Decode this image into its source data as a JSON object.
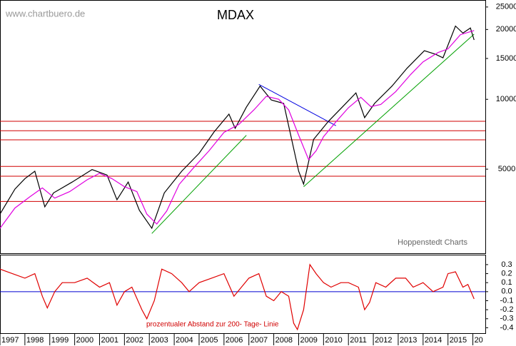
{
  "chart_data": [
    {
      "type": "line",
      "title": "MDAX",
      "watermark": "www.chartbuero.de",
      "credit": "Hoppenstedt Charts",
      "log_scale": true,
      "xlim": [
        1997,
        2016.5
      ],
      "ylim": [
        2170,
        26800
      ],
      "yticks": [
        5000,
        10000,
        15000,
        20000,
        25000
      ],
      "series": [
        {
          "name": "MDAX",
          "color": "#000000",
          "x": [
            1997.0,
            1997.6,
            1998.0,
            1998.4,
            1998.8,
            1999.15,
            1999.9,
            2000.7,
            2001.3,
            2001.7,
            2002.15,
            2002.6,
            2003.1,
            2003.6,
            2004.3,
            2005.0,
            2005.6,
            2006.2,
            2006.45,
            2006.9,
            2007.45,
            2007.9,
            2008.4,
            2008.75,
            2009.0,
            2009.2,
            2009.6,
            2010.2,
            2010.75,
            2011.3,
            2011.65,
            2012.05,
            2012.75,
            2013.35,
            2014.05,
            2014.5,
            2014.8,
            2015.3,
            2015.6,
            2015.9,
            2016.05
          ],
          "values": [
            3200,
            4100,
            4550,
            4900,
            3440,
            3950,
            4400,
            4980,
            4720,
            3690,
            4400,
            3320,
            2780,
            3950,
            4900,
            5850,
            7230,
            8630,
            7500,
            9250,
            11400,
            9940,
            9600,
            6500,
            4900,
            4310,
            6720,
            8050,
            9250,
            10660,
            8340,
            9600,
            11400,
            13600,
            16200,
            15640,
            15100,
            20700,
            19300,
            20300,
            18030
          ]
        },
        {
          "name": "200-Tage-Linie",
          "color": "#e000e0",
          "x": [
            1997.0,
            1997.6,
            1998.2,
            1998.7,
            1999.2,
            1999.8,
            2000.5,
            2001.0,
            2001.5,
            2002.0,
            2002.5,
            2002.9,
            2003.3,
            2003.7,
            2004.2,
            2004.8,
            2005.4,
            2006.0,
            2006.6,
            2007.2,
            2007.7,
            2008.2,
            2008.6,
            2009.0,
            2009.4,
            2009.7,
            2010.0,
            2010.5,
            2011.0,
            2011.5,
            2011.9,
            2012.3,
            2012.9,
            2013.5,
            2014.0,
            2014.6,
            2015.0,
            2015.5,
            2016.05
          ],
          "values": [
            2780,
            3400,
            3800,
            4150,
            3750,
            4000,
            4500,
            4800,
            4550,
            4200,
            4000,
            3200,
            2900,
            3300,
            4300,
            5100,
            6000,
            7200,
            7800,
            9000,
            10300,
            10000,
            9000,
            7000,
            5500,
            6000,
            6900,
            8000,
            9200,
            10200,
            9300,
            9500,
            10800,
            12800,
            14500,
            15900,
            16500,
            19000,
            19800
          ]
        }
      ],
      "hlines": [
        8040,
        7320,
        6690,
        5140,
        4660,
        3630
      ],
      "hline_color": "#d00000",
      "trendlines": [
        {
          "color": "#00a000",
          "x": [
            2003.1,
            2006.9
          ],
          "y": [
            2640,
            7000
          ]
        },
        {
          "color": "#00a000",
          "x": [
            2009.2,
            2016.05
          ],
          "y": [
            4200,
            19100
          ]
        },
        {
          "color": "#0000e0",
          "x": [
            2007.4,
            2010.5
          ],
          "y": [
            11600,
            7700
          ]
        }
      ]
    },
    {
      "type": "line",
      "label": "prozentualer Abstand zur 200- Tage- Linie",
      "xlim": [
        1997,
        2016.5
      ],
      "ylim": [
        -0.46,
        0.41
      ],
      "yticks": [
        0.3,
        0.2,
        0.1,
        {
          "value": 0,
          "label": "0.0"
        },
        -0.1,
        -0.2,
        -0.3,
        -0.4
      ],
      "xticks": [
        1997,
        1998,
        1999,
        2000,
        2001,
        2002,
        2003,
        2004,
        2005,
        2006,
        2007,
        2008,
        2009,
        2010,
        2011,
        2012,
        2013,
        2014,
        2015,
        {
          "value": 2016,
          "label": "20"
        }
      ],
      "zero_color": "#0000d0",
      "series": [
        {
          "name": "Abstand",
          "color": "#e00000",
          "x": [
            1997.0,
            1997.5,
            1998.0,
            1998.4,
            1998.7,
            1998.9,
            1999.2,
            1999.5,
            2000.0,
            2000.5,
            2001.0,
            2001.4,
            2001.7,
            2002.0,
            2002.3,
            2002.7,
            2002.9,
            2003.2,
            2003.5,
            2003.9,
            2004.3,
            2004.6,
            2005.0,
            2005.5,
            2006.0,
            2006.4,
            2006.7,
            2007.0,
            2007.4,
            2007.7,
            2008.0,
            2008.3,
            2008.6,
            2008.8,
            2008.95,
            2009.2,
            2009.45,
            2009.7,
            2010.0,
            2010.3,
            2010.7,
            2011.0,
            2011.4,
            2011.65,
            2011.85,
            2012.1,
            2012.5,
            2012.9,
            2013.3,
            2013.6,
            2014.0,
            2014.4,
            2014.8,
            2015.0,
            2015.3,
            2015.6,
            2015.8,
            2016.05
          ],
          "values": [
            0.25,
            0.2,
            0.15,
            0.2,
            -0.05,
            -0.18,
            0.0,
            0.1,
            0.1,
            0.15,
            0.05,
            0.1,
            -0.15,
            0.0,
            0.05,
            -0.2,
            -0.3,
            -0.1,
            0.25,
            0.2,
            0.1,
            0.0,
            0.1,
            0.15,
            0.2,
            -0.05,
            0.05,
            0.15,
            0.2,
            -0.05,
            -0.1,
            0.0,
            -0.05,
            -0.35,
            -0.42,
            -0.2,
            0.3,
            0.2,
            0.1,
            0.05,
            0.1,
            0.1,
            0.05,
            -0.2,
            -0.12,
            0.1,
            0.05,
            0.15,
            0.15,
            0.05,
            0.1,
            0.0,
            0.05,
            0.2,
            0.22,
            0.05,
            0.08,
            -0.08
          ]
        }
      ]
    }
  ]
}
